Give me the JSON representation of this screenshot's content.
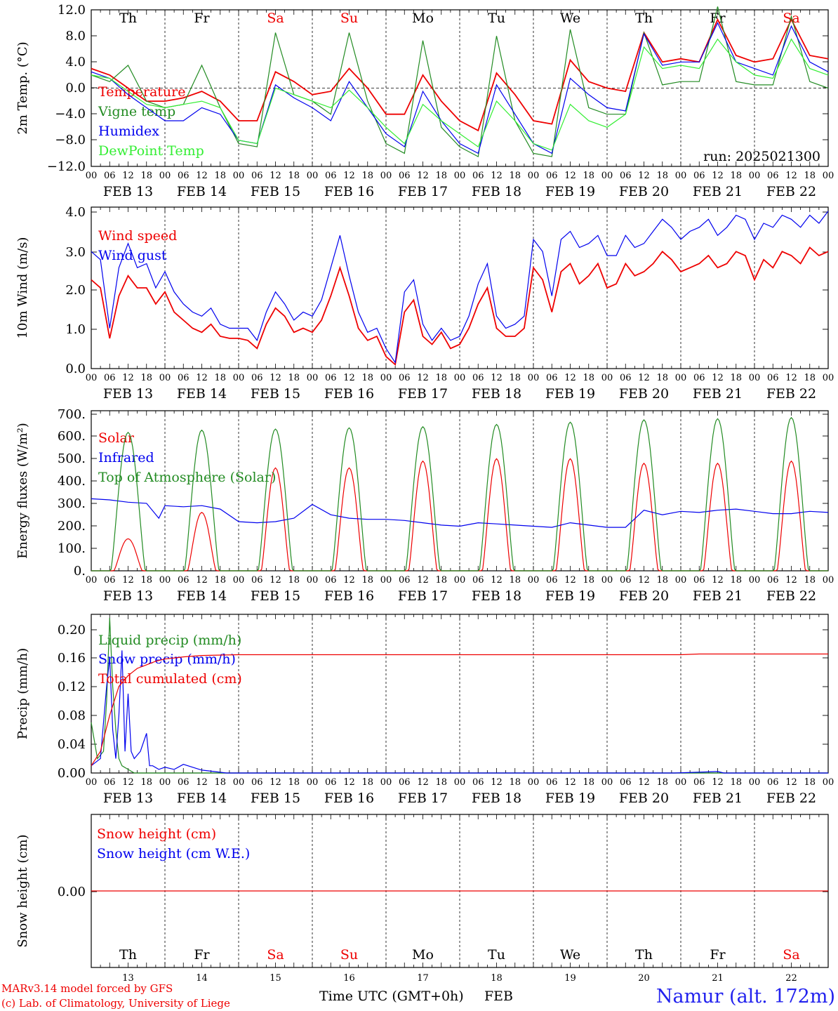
{
  "run_label": "run: 2025021300",
  "footer": {
    "model_line": "MARv3.14 model forced by GFS",
    "copyright_line": "(c) Lab. of Climatology, University of Liege",
    "axis_title": "Time UTC (GMT+0h)",
    "month": "FEB",
    "station": "Namur (alt. 172m)"
  },
  "colors": {
    "red": "#ee0000",
    "green": "#228b22",
    "blue": "#0000ee",
    "light_green": "#33ee33",
    "station": "#2222ee"
  },
  "time_axis": {
    "hour_ticks": [
      "00",
      "06",
      "12",
      "18"
    ],
    "end_tick": "00",
    "dates": [
      "FEB 13",
      "FEB 14",
      "FEB 15",
      "FEB 16",
      "FEB 17",
      "FEB 18",
      "FEB 19",
      "FEB 20",
      "FEB 21",
      "FEB 22"
    ],
    "weekdays": [
      "Th",
      "Fr",
      "Sa",
      "Su",
      "Mo",
      "Tu",
      "We",
      "Th",
      "Fr",
      "Sa"
    ],
    "weekend": [
      false,
      false,
      true,
      true,
      false,
      false,
      false,
      false,
      false,
      true
    ],
    "day_numbers": [
      "13",
      "14",
      "15",
      "16",
      "17",
      "18",
      "19",
      "20",
      "21",
      "22"
    ]
  },
  "chart_data": [
    {
      "type": "line",
      "title": "",
      "ylabel": "2m Temp. (°C)",
      "ylim": [
        -12,
        12
      ],
      "yticks": [
        "12.0",
        "8.0",
        "4.0",
        "0.0",
        "−4.0",
        "−8.0",
        "−12.0"
      ],
      "x_unit": "hours since FEB 13 00 UTC",
      "zero_line": true,
      "series": [
        {
          "name": "Temperature",
          "color": "red",
          "x": [
            0,
            6,
            12,
            18,
            24,
            30,
            36,
            42,
            48,
            54,
            60,
            66,
            72,
            78,
            84,
            90,
            96,
            102,
            108,
            114,
            120,
            126,
            132,
            138,
            144,
            150,
            156,
            162,
            168,
            174,
            180,
            186,
            192,
            198,
            204,
            210,
            216,
            222,
            228,
            234,
            240
          ],
          "y": [
            3,
            2,
            0,
            -2,
            -2,
            -1.5,
            -0.5,
            -2,
            -5,
            -5,
            2.5,
            1,
            -1,
            -0.5,
            3,
            0,
            -4,
            -4,
            2,
            -2,
            -5,
            -6.5,
            2.3,
            -1,
            -5,
            -5.5,
            4.3,
            1,
            0,
            -0.5,
            8.5,
            4,
            4.5,
            4,
            10.5,
            5,
            4,
            4.5,
            10.5,
            5,
            4.5
          ]
        },
        {
          "name": "Vigne temp",
          "color": "green",
          "x": [
            0,
            6,
            12,
            18,
            24,
            30,
            36,
            42,
            48,
            54,
            60,
            66,
            72,
            78,
            84,
            90,
            96,
            102,
            108,
            114,
            120,
            126,
            132,
            138,
            144,
            150,
            156,
            162,
            168,
            174,
            180,
            186,
            192,
            198,
            204,
            210,
            216,
            222,
            228,
            234,
            240
          ],
          "y": [
            2,
            1,
            3.5,
            -2,
            -3,
            -2.5,
            3.5,
            -3,
            -8.5,
            -9,
            8.5,
            -1,
            -2,
            -4,
            8.5,
            -2,
            -8.5,
            -10,
            7.3,
            -6,
            -9,
            -10.5,
            8,
            -5,
            -10,
            -10.5,
            9,
            -3,
            -4,
            -4,
            8.5,
            0.5,
            1,
            1,
            12.5,
            1,
            0.5,
            0.5,
            11,
            1,
            0
          ]
        },
        {
          "name": "Humidex",
          "color": "blue",
          "x": [
            0,
            6,
            12,
            18,
            24,
            30,
            36,
            42,
            48,
            54,
            60,
            66,
            72,
            78,
            84,
            90,
            96,
            102,
            108,
            114,
            120,
            126,
            132,
            138,
            144,
            150,
            156,
            162,
            168,
            174,
            180,
            186,
            192,
            198,
            204,
            210,
            216,
            222,
            228,
            234,
            240
          ],
          "y": [
            2.5,
            1.5,
            -1,
            -3,
            -5,
            -5,
            -3,
            -4,
            -8,
            -8.5,
            0.5,
            -1.5,
            -3,
            -5,
            1,
            -3,
            -7,
            -9,
            -0.5,
            -5,
            -8.5,
            -10,
            0.5,
            -4,
            -8.5,
            -10,
            1.5,
            -1,
            -3,
            -3.5,
            8.3,
            3.5,
            4,
            4,
            10,
            4,
            3,
            2,
            9.5,
            4,
            2.5
          ]
        },
        {
          "name": "DewPoint Temp",
          "color": "light_green",
          "x": [
            0,
            6,
            12,
            18,
            24,
            30,
            36,
            42,
            48,
            54,
            60,
            66,
            72,
            78,
            84,
            90,
            96,
            102,
            108,
            114,
            120,
            126,
            132,
            138,
            144,
            150,
            156,
            162,
            168,
            174,
            180,
            186,
            192,
            198,
            204,
            210,
            216,
            222,
            228,
            234,
            240
          ],
          "y": [
            2,
            1.5,
            -0.5,
            -2.5,
            -3,
            -2.5,
            -2,
            -3,
            -8,
            -8.5,
            0,
            -1,
            -2,
            -3,
            -0.3,
            -3,
            -6,
            -8.5,
            -2.5,
            -5,
            -7,
            -9,
            -2,
            -5,
            -8.5,
            -9.5,
            -2.5,
            -5,
            -6,
            -4,
            6.3,
            3,
            3.5,
            3,
            7.5,
            4,
            2,
            1.5,
            7.5,
            3,
            2
          ]
        }
      ]
    },
    {
      "type": "line",
      "title": "",
      "ylabel": "10m Wind (m/s)",
      "ylim": [
        0,
        4
      ],
      "yticks": [
        "4.0",
        "3.0",
        "2.0",
        "1.0",
        "0.0"
      ],
      "x_unit": "hours since FEB 13 00 UTC",
      "series": [
        {
          "name": "Wind speed",
          "color": "red",
          "x": [
            0,
            3,
            6,
            9,
            12,
            15,
            18,
            21,
            24,
            27,
            30,
            33,
            36,
            39,
            42,
            45,
            48,
            51,
            54,
            57,
            60,
            63,
            66,
            69,
            72,
            75,
            78,
            81,
            84,
            87,
            90,
            93,
            96,
            99,
            102,
            105,
            108,
            111,
            114,
            117,
            120,
            123,
            126,
            129,
            132,
            135,
            138,
            141,
            144,
            147,
            150,
            153,
            156,
            159,
            162,
            165,
            168,
            171,
            174,
            177,
            180,
            183,
            186,
            189,
            192,
            195,
            198,
            201,
            204,
            207,
            210,
            213,
            216,
            219,
            222,
            225,
            228,
            231,
            234,
            237,
            240
          ],
          "y": [
            2.2,
            2,
            0.75,
            1.8,
            2.3,
            2,
            2,
            1.6,
            1.9,
            1.4,
            1.2,
            1,
            0.9,
            1.1,
            0.8,
            0.75,
            0.75,
            0.7,
            0.5,
            1.1,
            1.5,
            1.3,
            0.9,
            1.0,
            0.9,
            1.2,
            1.8,
            2.5,
            1.8,
            1.0,
            0.7,
            0.8,
            0.3,
            0.1,
            1.4,
            1.7,
            0.8,
            0.6,
            0.9,
            0.5,
            0.6,
            1.0,
            1.6,
            2.0,
            1.0,
            0.8,
            0.8,
            1.0,
            2.5,
            2.2,
            1.4,
            2.4,
            2.6,
            2.1,
            2.3,
            2.6,
            2.0,
            2.1,
            2.6,
            2.3,
            2.4,
            2.6,
            2.9,
            2.7,
            2.4,
            2.5,
            2.6,
            2.8,
            2.5,
            2.6,
            2.9,
            2.8,
            2.2,
            2.7,
            2.5,
            2.9,
            2.8,
            2.6,
            3.0,
            2.8,
            2.9
          ]
        },
        {
          "name": "Wind gust",
          "color": "blue",
          "x": [
            0,
            3,
            6,
            9,
            12,
            15,
            18,
            21,
            24,
            27,
            30,
            33,
            36,
            39,
            42,
            45,
            48,
            51,
            54,
            57,
            60,
            63,
            66,
            69,
            72,
            75,
            78,
            81,
            84,
            87,
            90,
            93,
            96,
            99,
            102,
            105,
            108,
            111,
            114,
            117,
            120,
            123,
            126,
            129,
            132,
            135,
            138,
            141,
            144,
            147,
            150,
            153,
            156,
            159,
            162,
            165,
            168,
            171,
            174,
            177,
            180,
            183,
            186,
            189,
            192,
            195,
            198,
            201,
            204,
            207,
            210,
            213,
            216,
            219,
            222,
            225,
            228,
            231,
            234,
            237,
            240
          ],
          "y": [
            2.9,
            2.7,
            1.0,
            2.5,
            3.1,
            2.5,
            2.6,
            2.0,
            2.4,
            1.9,
            1.6,
            1.4,
            1.3,
            1.5,
            1.1,
            1.0,
            1.0,
            1.0,
            0.7,
            1.4,
            1.9,
            1.6,
            1.2,
            1.4,
            1.3,
            1.7,
            2.5,
            3.3,
            2.3,
            1.4,
            0.9,
            1.0,
            0.5,
            0.15,
            1.9,
            2.2,
            1.1,
            0.7,
            1.0,
            0.7,
            0.8,
            1.3,
            2.1,
            2.6,
            1.3,
            1.0,
            1.1,
            1.3,
            3.2,
            2.9,
            1.8,
            3.2,
            3.4,
            3.0,
            3.1,
            3.3,
            2.8,
            2.8,
            3.3,
            3.0,
            3.1,
            3.4,
            3.7,
            3.5,
            3.2,
            3.4,
            3.5,
            3.7,
            3.3,
            3.5,
            3.8,
            3.7,
            3.2,
            3.6,
            3.5,
            3.8,
            3.7,
            3.5,
            3.8,
            3.6,
            3.9
          ]
        }
      ]
    },
    {
      "type": "line",
      "title": "",
      "ylabel": "Energy fluxes (W/m²)",
      "ylim": [
        0,
        700
      ],
      "yticks": [
        "700.",
        "600.",
        "500.",
        "400.",
        "300.",
        "200.",
        "100.",
        "0."
      ],
      "x_unit": "hours since FEB 13 00 UTC",
      "daily_peaks": {
        "solar": [
          140,
          255,
          450,
          450,
          480,
          490,
          490,
          470,
          470,
          480
        ],
        "top_of_atmosphere": [
          605,
          615,
          620,
          625,
          630,
          640,
          650,
          660,
          665,
          670
        ]
      },
      "series": [
        {
          "name": "Solar",
          "color": "red"
        },
        {
          "name": "Infrared",
          "color": "blue",
          "x": [
            0,
            6,
            12,
            18,
            22,
            24,
            30,
            36,
            42,
            48,
            54,
            60,
            66,
            72,
            78,
            84,
            90,
            96,
            102,
            108,
            114,
            120,
            126,
            132,
            138,
            144,
            150,
            156,
            162,
            168,
            174,
            180,
            186,
            192,
            198,
            204,
            210,
            216,
            222,
            228,
            234,
            240
          ],
          "y": [
            315,
            310,
            300,
            295,
            230,
            285,
            280,
            285,
            270,
            215,
            210,
            215,
            230,
            290,
            245,
            230,
            225,
            225,
            220,
            210,
            200,
            195,
            210,
            205,
            200,
            195,
            190,
            210,
            200,
            190,
            190,
            265,
            245,
            260,
            255,
            265,
            270,
            260,
            250,
            250,
            260,
            255
          ]
        },
        {
          "name": "Top of Atmosphere (Solar)",
          "color": "green"
        }
      ]
    },
    {
      "type": "line",
      "title": "",
      "ylabel": "Precip (mm/h)",
      "ylim": [
        0,
        0.22
      ],
      "yticks": [
        "0.20",
        "0.16",
        "0.12",
        "0.08",
        "0.04",
        "0.00"
      ],
      "x_unit": "hours since FEB 13 00 UTC",
      "series": [
        {
          "name": "Liquid precip (mm/h)",
          "color": "green",
          "x": [
            0,
            2,
            4,
            5,
            6,
            7,
            8,
            9,
            10,
            12,
            14,
            16,
            18,
            24,
            240
          ],
          "y": [
            0.07,
            0.02,
            0.03,
            0.1,
            0.215,
            0.12,
            0.06,
            0.02,
            0.01,
            0.005,
            0,
            0,
            0,
            0,
            0
          ]
        },
        {
          "name": "Snow precip (mm/h)",
          "color": "blue",
          "x": [
            0,
            3,
            5,
            6,
            7,
            8,
            9,
            10,
            11,
            12,
            13,
            14,
            16,
            18,
            19,
            20,
            22,
            24,
            27,
            30,
            33,
            36,
            40,
            44,
            48,
            120,
            190,
            204,
            206,
            240
          ],
          "y": [
            0.01,
            0.02,
            0.12,
            0.16,
            0.06,
            0.02,
            0.08,
            0.17,
            0.03,
            0.11,
            0.03,
            0.02,
            0.03,
            0.055,
            0.01,
            0.01,
            0.005,
            0.008,
            0.005,
            0.012,
            0.008,
            0.004,
            0.002,
            0,
            0,
            0,
            0,
            0.002,
            0,
            0
          ]
        },
        {
          "name": "Total cumulated (cm)",
          "color": "red",
          "x": [
            0,
            3,
            6,
            9,
            12,
            15,
            18,
            21,
            24,
            30,
            36,
            48,
            60,
            72,
            120,
            180,
            192,
            198,
            204,
            240
          ],
          "y": [
            0.01,
            0.03,
            0.08,
            0.12,
            0.135,
            0.145,
            0.15,
            0.155,
            0.158,
            0.161,
            0.163,
            0.164,
            0.164,
            0.164,
            0.164,
            0.164,
            0.164,
            0.165,
            0.165,
            0.165
          ]
        }
      ]
    },
    {
      "type": "line",
      "title": "",
      "ylabel": "Snow height (cm)",
      "ylim": [
        -0.01,
        0.01
      ],
      "yticks": [
        "0.00"
      ],
      "x_unit": "hours since FEB 13 00 UTC",
      "series": [
        {
          "name": "Snow height (cm)",
          "color": "red",
          "x": [
            0,
            240
          ],
          "y": [
            0,
            0
          ]
        },
        {
          "name": "Snow height (cm W.E.)",
          "color": "blue"
        }
      ]
    }
  ]
}
